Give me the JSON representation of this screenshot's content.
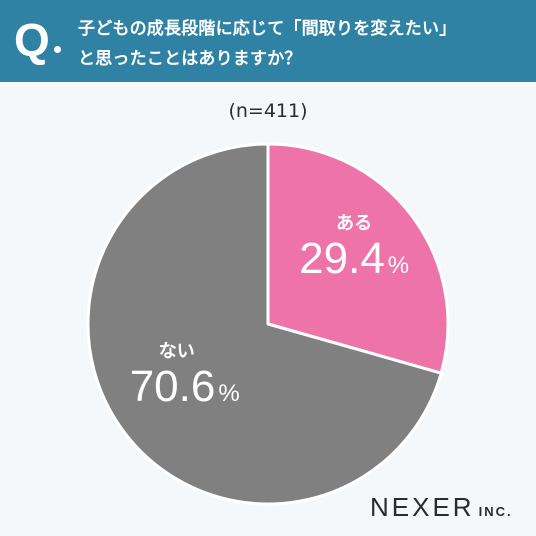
{
  "header": {
    "q_mark": "Q",
    "question_line1": "子どもの成長段階に応じて「間取りを変えたい」",
    "question_line2": "と思ったことはありますか？",
    "background_color": "#2f82a3"
  },
  "sample_size": "(n=411)",
  "logo": {
    "name": "NEXER",
    "suffix": "INC."
  },
  "chart_data": {
    "type": "pie",
    "categories": [
      "ある",
      "ない"
    ],
    "values": [
      29.4,
      70.6
    ],
    "labels": [
      "29.4",
      "70.6"
    ],
    "unit": "%",
    "colors": [
      "#ee73a8",
      "#808080"
    ],
    "start_angle_deg": 0,
    "direction": "clockwise"
  }
}
